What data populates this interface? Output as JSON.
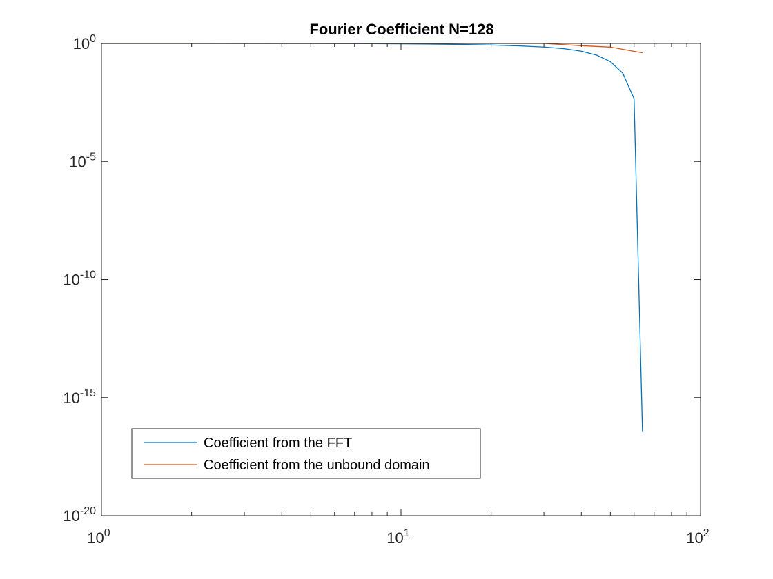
{
  "chart_data": {
    "type": "line",
    "title": "Fourier Coefficient N=128",
    "xlabel": "",
    "ylabel": "",
    "xscale": "log",
    "yscale": "log",
    "xlim": [
      1,
      100
    ],
    "ylim": [
      1e-20,
      1
    ],
    "xticks": [
      {
        "value": 1,
        "base": "10",
        "exp": "0"
      },
      {
        "value": 10,
        "base": "10",
        "exp": "1"
      },
      {
        "value": 100,
        "base": "10",
        "exp": "2"
      }
    ],
    "yticks": [
      {
        "value": 1,
        "base": "10",
        "exp": "0"
      },
      {
        "value": 1e-05,
        "base": "10",
        "exp": "-5"
      },
      {
        "value": 1e-10,
        "base": "10",
        "exp": "-10"
      },
      {
        "value": 1e-15,
        "base": "10",
        "exp": "-15"
      },
      {
        "value": 1e-20,
        "base": "10",
        "exp": "-20"
      }
    ],
    "grid": false,
    "legend_position": "bottom-left",
    "series": [
      {
        "name": "Coefficient from the FFT",
        "color": "#0072BD",
        "x": [
          1,
          2,
          3,
          4,
          5,
          6,
          8,
          10,
          12,
          15,
          20,
          25,
          30,
          35,
          40,
          45,
          50,
          55,
          60,
          64
        ],
        "y": [
          1,
          0.9984,
          0.9964,
          0.9937,
          0.9902,
          0.986,
          0.9752,
          0.9615,
          0.945,
          0.9151,
          0.855,
          0.783,
          0.702,
          0.6,
          0.47,
          0.32,
          0.17,
          0.055,
          0.0045,
          3.5e-17
        ]
      },
      {
        "name": "Coefficient from the unbound domain",
        "color": "#D95319",
        "x": [
          1,
          2,
          4,
          8,
          10,
          16,
          20,
          30,
          40,
          50,
          64
        ],
        "y": [
          1,
          1,
          1,
          1,
          1,
          1,
          1,
          1,
          0.8,
          0.7,
          0.4
        ]
      }
    ]
  }
}
